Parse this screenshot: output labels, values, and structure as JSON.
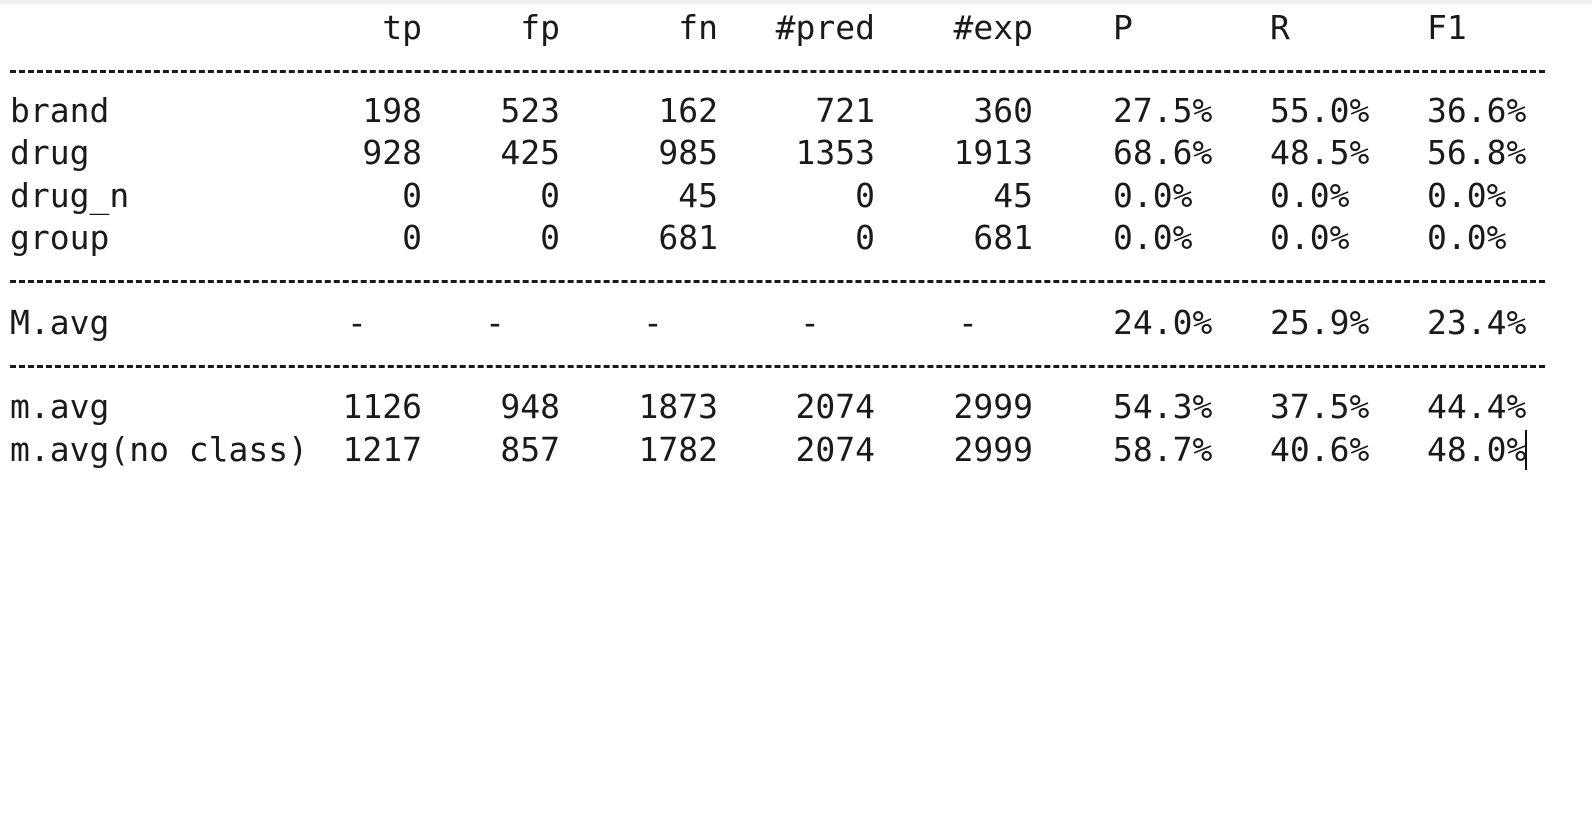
{
  "columns": [
    "tp",
    "fp",
    "fn",
    "#pred",
    "#exp",
    "P",
    "R",
    "F1"
  ],
  "rows": [
    {
      "label": "brand",
      "tp": "198",
      "fp": "523",
      "fn": "162",
      "pred": "721",
      "exp": "360",
      "P": "27.5%",
      "R": "55.0%",
      "F1": "36.6%"
    },
    {
      "label": "drug",
      "tp": "928",
      "fp": "425",
      "fn": "985",
      "pred": "1353",
      "exp": "1913",
      "P": "68.6%",
      "R": "48.5%",
      "F1": "56.8%"
    },
    {
      "label": "drug_n",
      "tp": "0",
      "fp": "0",
      "fn": "45",
      "pred": "0",
      "exp": "45",
      "P": "0.0%",
      "R": "0.0%",
      "F1": "0.0%"
    },
    {
      "label": "group",
      "tp": "0",
      "fp": "0",
      "fn": "681",
      "pred": "0",
      "exp": "681",
      "P": "0.0%",
      "R": "0.0%",
      "F1": "0.0%"
    }
  ],
  "macro": {
    "label": "M.avg",
    "tp": "-",
    "fp": "-",
    "fn": "-",
    "pred": "-",
    "exp": "-",
    "P": "24.0%",
    "R": "25.9%",
    "F1": "23.4%"
  },
  "micro": [
    {
      "label": "m.avg",
      "tp": "1126",
      "fp": "948",
      "fn": "1873",
      "pred": "2074",
      "exp": "2999",
      "P": "54.3%",
      "R": "37.5%",
      "F1": "44.4%"
    },
    {
      "label": "m.avg(no class)",
      "tp": "1217",
      "fp": "857",
      "fn": "1782",
      "pred": "2074",
      "exp": "2999",
      "P": "58.7%",
      "R": "40.6%",
      "F1": "48.0%"
    }
  ]
}
